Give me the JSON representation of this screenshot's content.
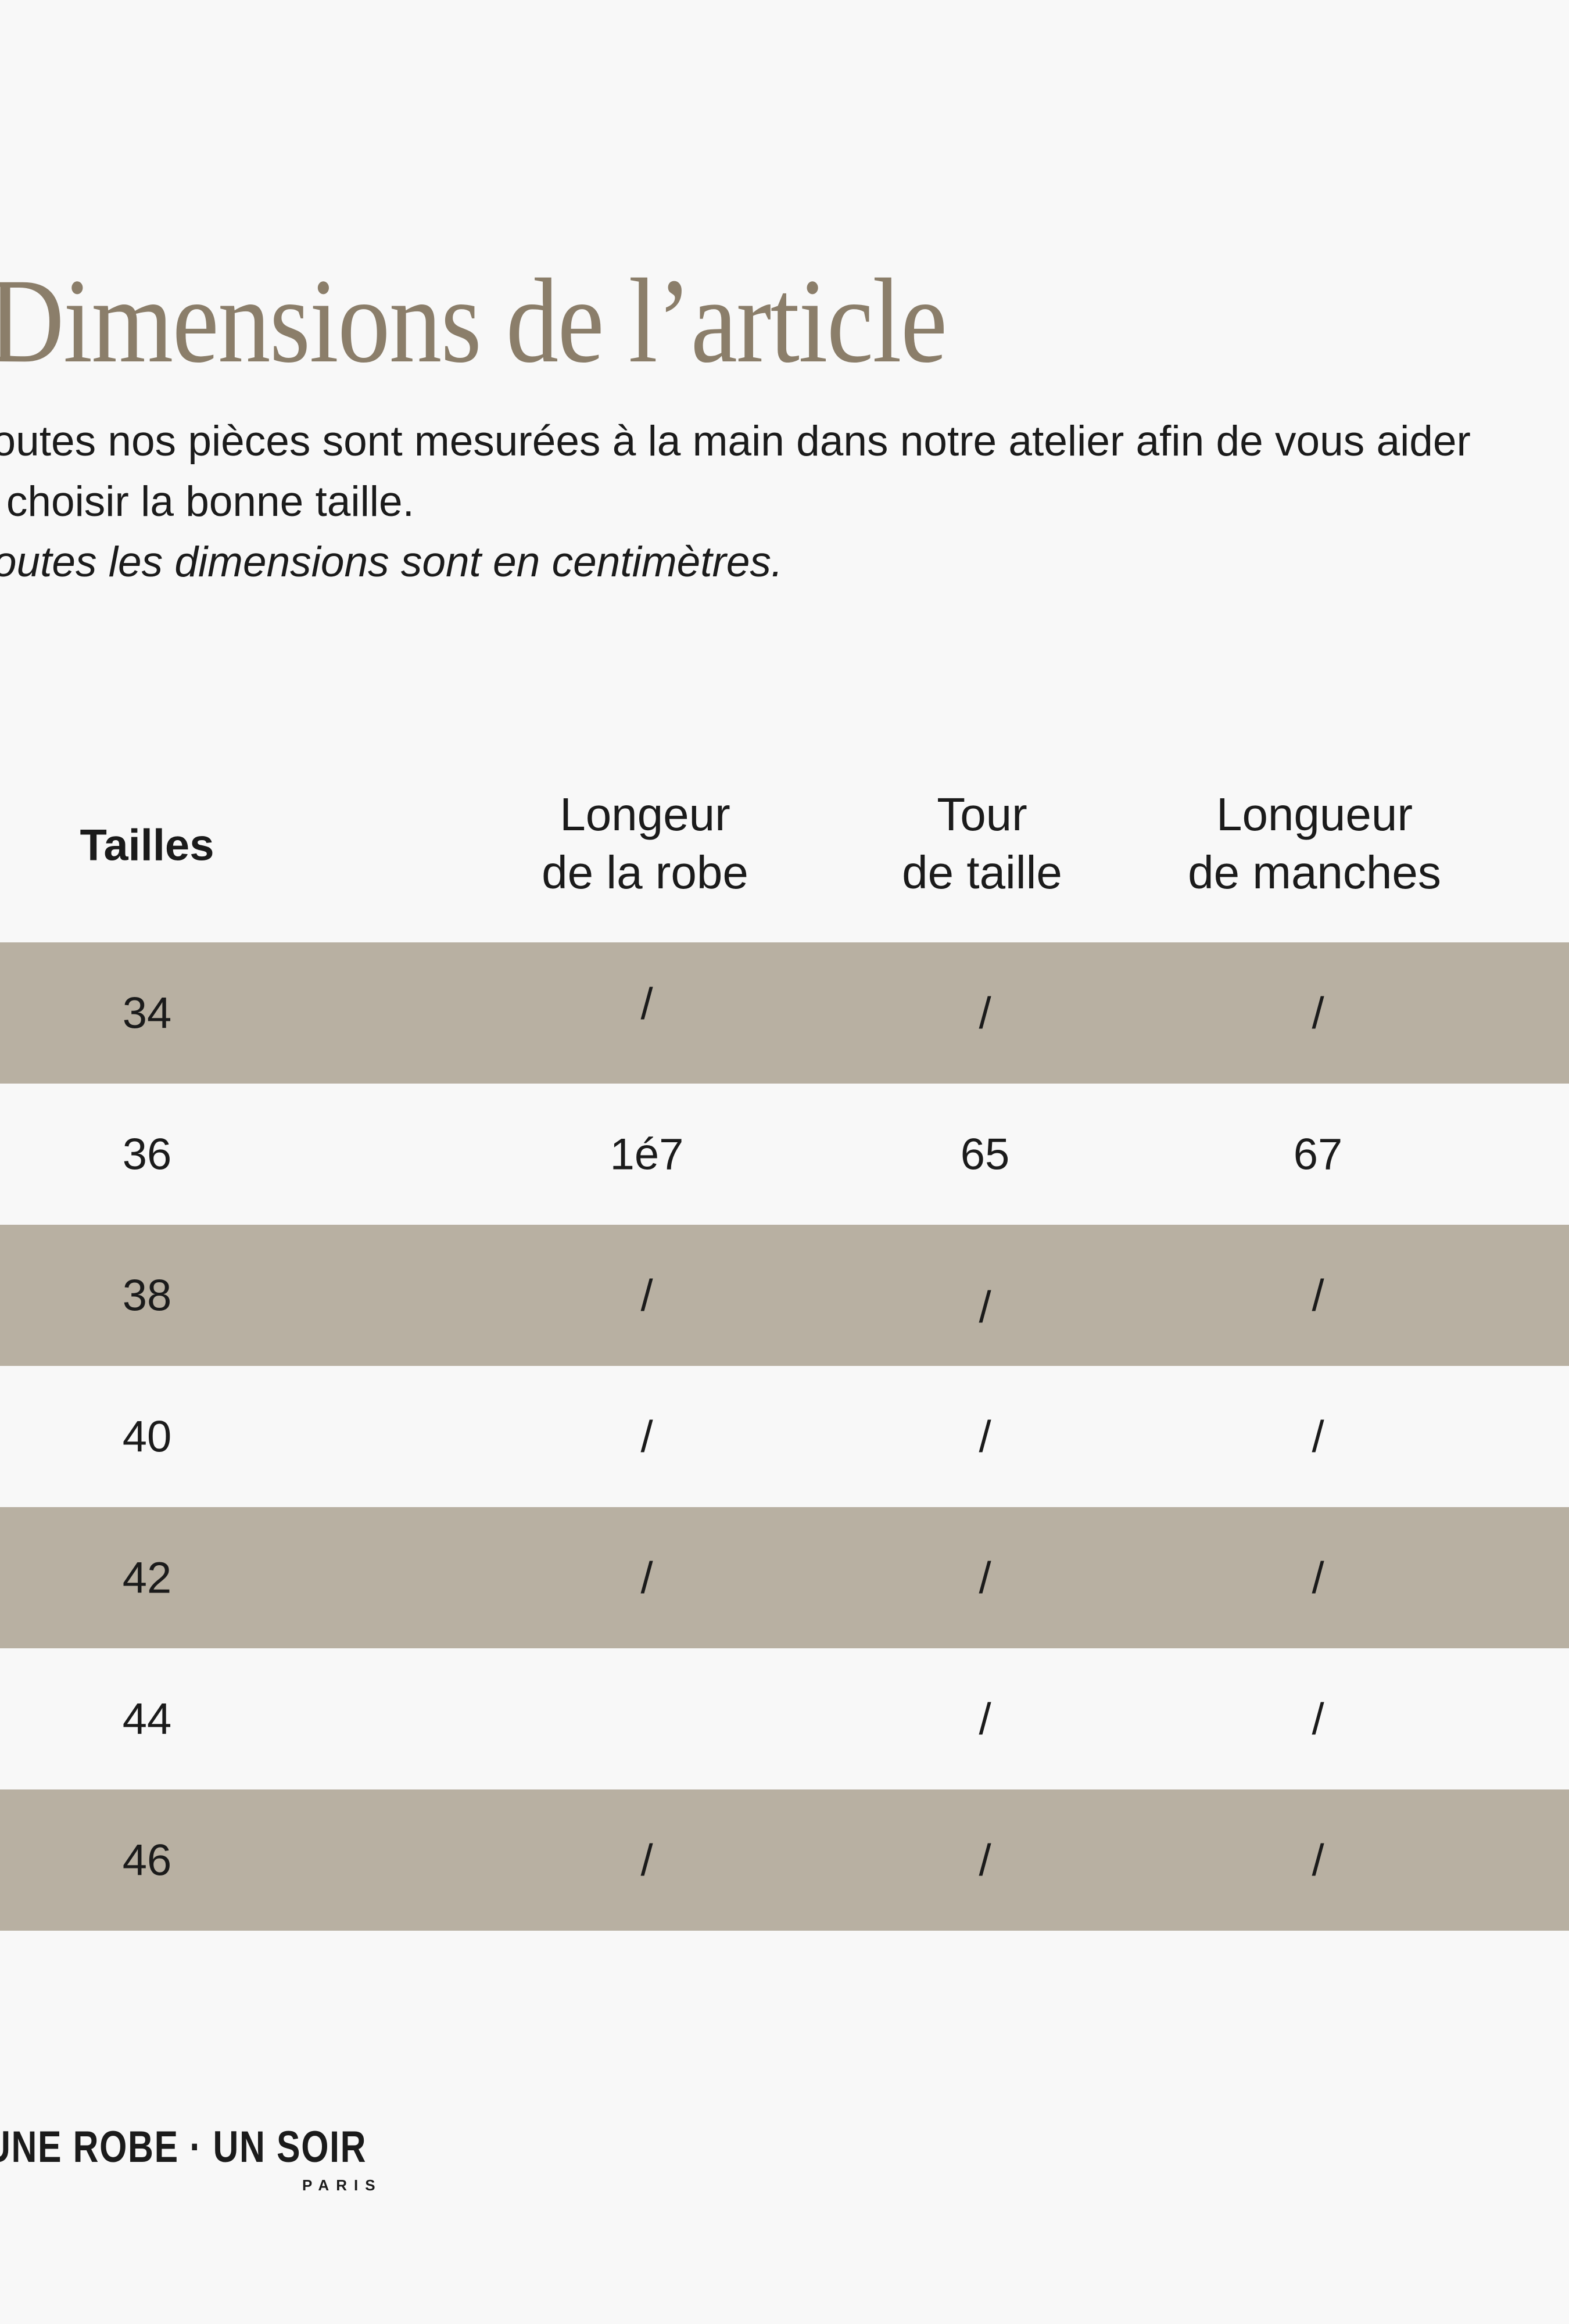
{
  "header": {
    "title": "Dimensions de l’article"
  },
  "intro": {
    "line1": "Toutes nos pièces sont mesurées à la main dans notre atelier afin de vous aider",
    "line2": "à choisir la bonne taille.",
    "note": "Toutes les dimensions sont en centimètres."
  },
  "table": {
    "size_column_header": "Tailles",
    "columns": [
      {
        "line1": "Longeur",
        "line2": "de la robe"
      },
      {
        "line1": "Tour",
        "line2": "de taille"
      },
      {
        "line1": "Longueur",
        "line2": "de manches"
      }
    ],
    "rows": [
      {
        "size": "34",
        "values": [
          "/",
          "/",
          "/"
        ]
      },
      {
        "size": "36",
        "values": [
          "1é7",
          "65",
          "67"
        ]
      },
      {
        "size": "38",
        "values": [
          "/",
          "/",
          "/"
        ]
      },
      {
        "size": "40",
        "values": [
          "/",
          "/",
          "/"
        ]
      },
      {
        "size": "42",
        "values": [
          "/",
          "/",
          "/"
        ]
      },
      {
        "size": "44",
        "values": [
          "",
          "/",
          "/"
        ]
      },
      {
        "size": "46",
        "values": [
          "/",
          "/",
          "/"
        ]
      }
    ]
  },
  "footer": {
    "brand": "UNE ROBE · UN SOIR",
    "city": "PARIS"
  },
  "colors": {
    "background": "#f8f8f8",
    "row-beige": "#b8b0a2",
    "title": "#8b7e6a",
    "ink": "#1b1b1b"
  }
}
